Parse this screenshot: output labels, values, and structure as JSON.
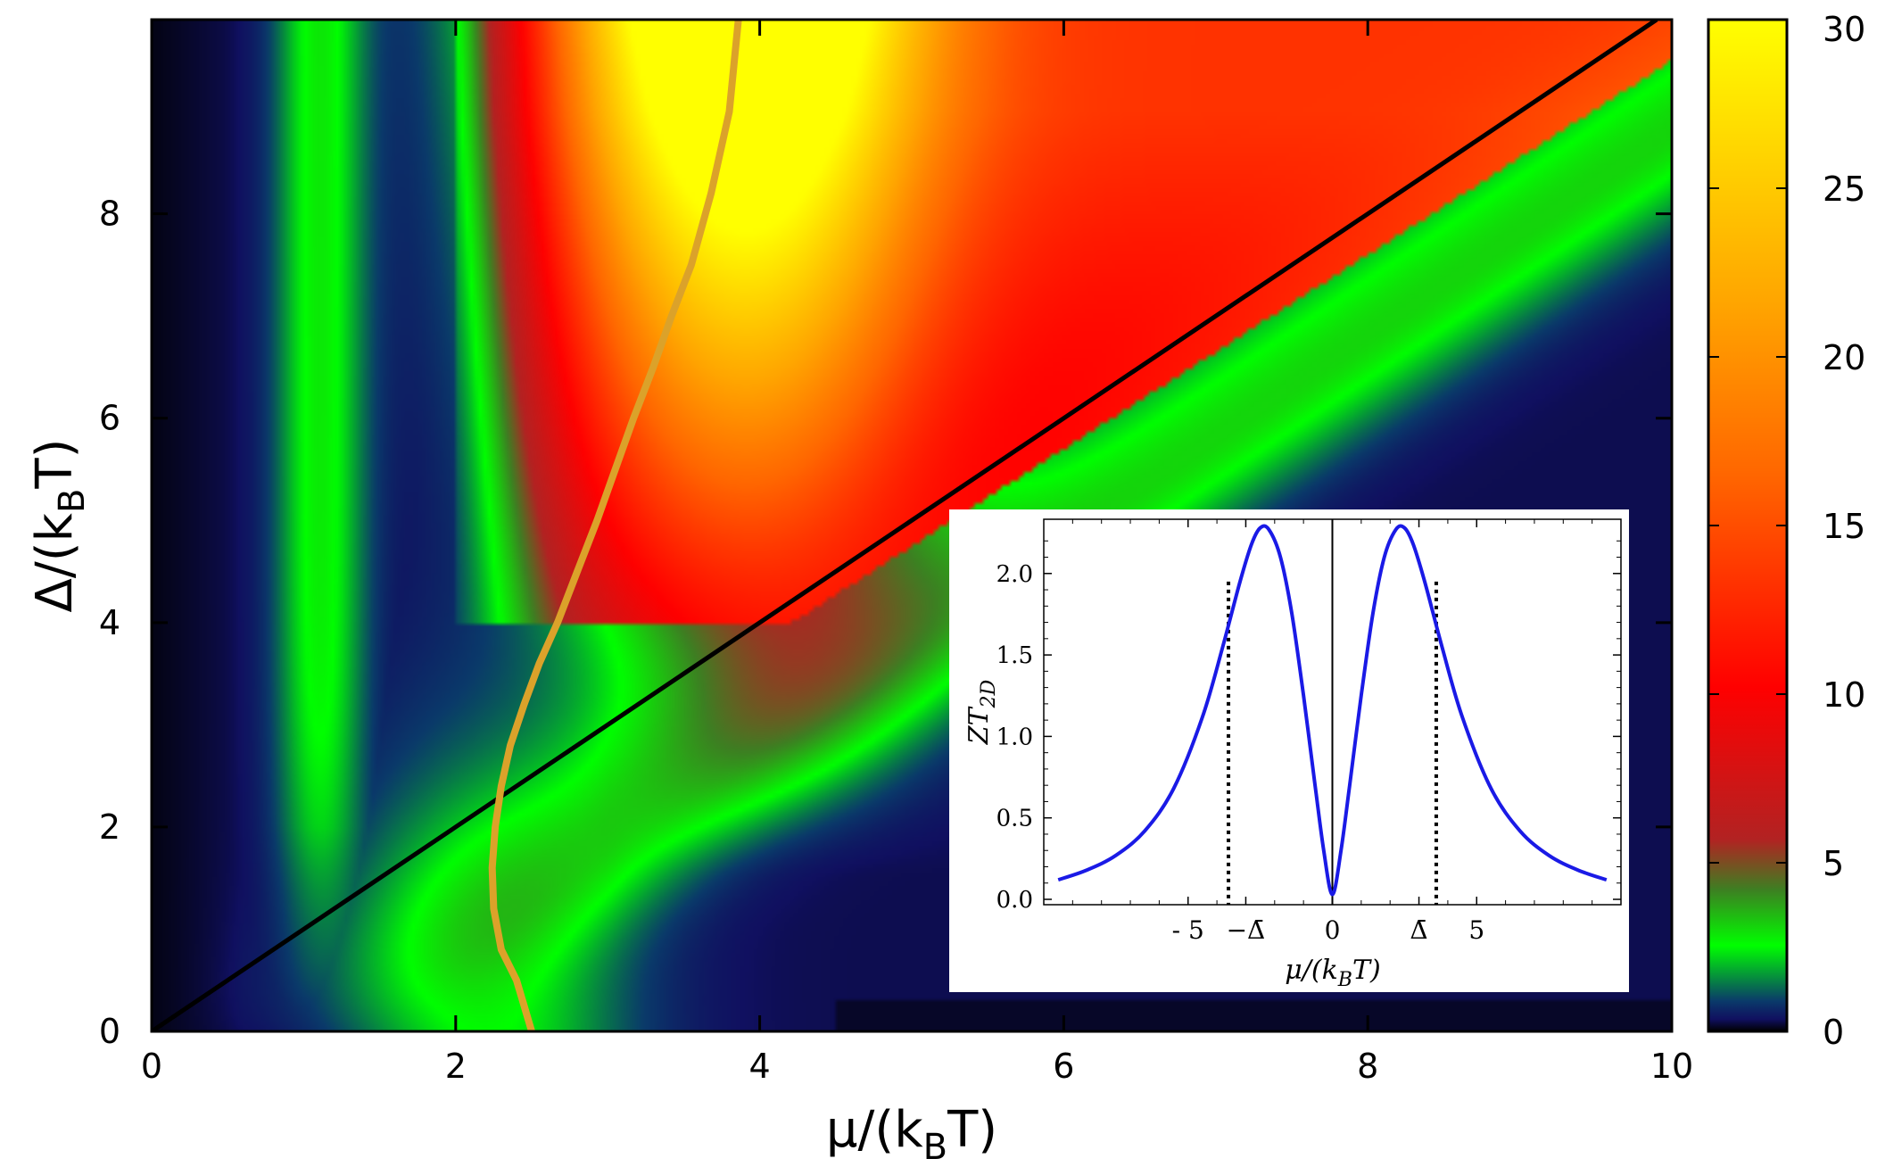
{
  "chart_data": [
    {
      "type": "heatmap",
      "xlabel_main": "μ/(k",
      "xlabel_sub": "B",
      "xlabel_tail": "T)",
      "ylabel_main": "Δ/(k",
      "ylabel_sub": "B",
      "ylabel_tail": "T)",
      "xlim": [
        0,
        10
      ],
      "ylim": [
        0,
        9.9
      ],
      "x_ticks": [
        0,
        2,
        4,
        6,
        8,
        10
      ],
      "y_ticks": [
        0,
        2,
        4,
        6,
        8
      ],
      "x_tick_labels": [
        "0",
        "2",
        "4",
        "6",
        "8",
        "10"
      ],
      "y_tick_labels": [
        "0",
        "2",
        "4",
        "6",
        "8"
      ],
      "colorbar": {
        "range": [
          0,
          30
        ],
        "ticks": [
          0,
          5,
          10,
          15,
          20,
          25,
          30
        ],
        "tick_labels": [
          "0",
          "5",
          "10",
          "15",
          "20",
          "25",
          "30"
        ],
        "colormap": [
          "#000000",
          "#101060",
          "#0a3a6a",
          "#00ff00",
          "#3d7f22",
          "#b22222",
          "#ff0000",
          "#ff6600",
          "#ffa500",
          "#ffff00"
        ]
      },
      "lines": [
        {
          "color": "#000000",
          "x": [
            0,
            9.9
          ],
          "y": [
            0,
            9.9
          ]
        },
        {
          "color": "#e0a526",
          "x": [
            2.5,
            2.4,
            2.3,
            2.25,
            2.24,
            2.26,
            2.3,
            2.36,
            2.45,
            2.55,
            2.67,
            2.8,
            2.93,
            3.05,
            3.17,
            3.3,
            3.42,
            3.55,
            3.68,
            3.8,
            3.86
          ],
          "y": [
            0,
            0.5,
            0.8,
            1.2,
            1.6,
            2.0,
            2.4,
            2.8,
            3.2,
            3.6,
            4.0,
            4.5,
            5.0,
            5.5,
            6.0,
            6.5,
            7.0,
            7.5,
            8.2,
            9.0,
            9.9
          ]
        }
      ]
    },
    {
      "type": "line",
      "ylabel": "ZT",
      "ylabel_sub": "2D",
      "xlabel": "μ/(k",
      "xlabel_sub": "B",
      "xlabel_tail": "T)",
      "xlim": [
        -10,
        10
      ],
      "ylim": [
        0,
        2.3
      ],
      "x_ticks": [
        -5,
        -3,
        0,
        3,
        5
      ],
      "x_tick_labels": [
        "- 5",
        "−Δ̄",
        "0",
        "Δ̄",
        "5"
      ],
      "y_ticks": [
        0,
        0.5,
        1.0,
        1.5,
        2.0
      ],
      "y_tick_labels": [
        "0.0",
        "0.5",
        "1.0",
        "1.5",
        "2.0"
      ],
      "series": [
        {
          "color": "#0000ee",
          "x": [
            -9.5,
            -8.5,
            -7.5,
            -6.5,
            -5.5,
            -4.5,
            -3.8,
            -3.2,
            -2.8,
            -2.5,
            -2.2,
            -1.8,
            -1.4,
            -1.0,
            -0.6,
            -0.3,
            0,
            0.3,
            0.6,
            1.0,
            1.4,
            1.8,
            2.2,
            2.5,
            2.8,
            3.2,
            3.8,
            4.5,
            5.5,
            6.5,
            7.5,
            8.5,
            9.5
          ],
          "y": [
            0.12,
            0.18,
            0.27,
            0.42,
            0.68,
            1.12,
            1.55,
            1.95,
            2.18,
            2.28,
            2.27,
            2.1,
            1.75,
            1.25,
            0.7,
            0.3,
            0.03,
            0.3,
            0.7,
            1.25,
            1.75,
            2.1,
            2.27,
            2.28,
            2.18,
            1.95,
            1.55,
            1.12,
            0.68,
            0.42,
            0.27,
            0.18,
            0.12
          ]
        }
      ],
      "markers": [
        {
          "x": -3.6,
          "y_top": 1.95
        },
        {
          "x": 3.6,
          "y_top": 1.95
        }
      ]
    }
  ]
}
